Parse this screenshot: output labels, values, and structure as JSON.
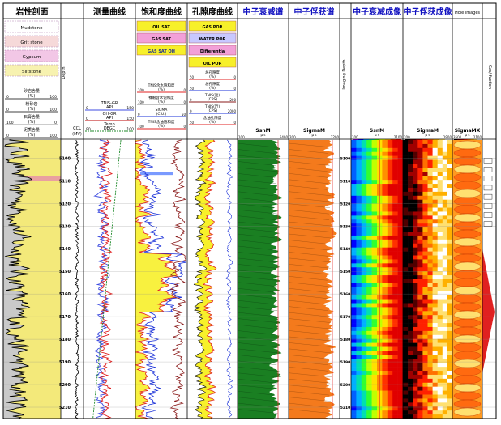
{
  "tracks": [
    {
      "key": "lith",
      "title": "岩性剖面"
    },
    {
      "key": "depth",
      "title": ""
    },
    {
      "key": "meas",
      "title": "测量曲线"
    },
    {
      "key": "sat",
      "title": "饱和度曲线"
    },
    {
      "key": "por",
      "title": "孔隙度曲线"
    },
    {
      "key": "decay",
      "title": "中子衰减谱"
    },
    {
      "key": "capture",
      "title": "中子俘获谱"
    },
    {
      "key": "imgdepth",
      "title": ""
    },
    {
      "key": "decayimg",
      "title": "中子衰减成像"
    },
    {
      "key": "captureimg",
      "title": "中子俘获成像"
    },
    {
      "key": "hole",
      "title": "Hole images"
    },
    {
      "key": "interp",
      "title": "Gas/ fuction"
    }
  ],
  "lith_legend": [
    "Mudstone",
    "Grit stone",
    "Gypsum",
    "Siltstone"
  ],
  "lith_scales": [
    {
      "name": "砂岩含量",
      "unit": "(%)",
      "min": "0",
      "max": "100"
    },
    {
      "name": "粉砂岩",
      "unit": "(%)",
      "min": "0",
      "max": "100"
    },
    {
      "name": "石膏含量",
      "unit": "(%)",
      "min": "100",
      "max": "0"
    },
    {
      "name": "泥质含量",
      "unit": "(%)",
      "min": "0",
      "max": "100"
    }
  ],
  "depth_header": "Depth",
  "meas_scales": [
    {
      "name": "TNIS-GR",
      "unit": "API",
      "min": "0",
      "max": "150"
    },
    {
      "name": "OH-GR",
      "unit": "API",
      "min": "0",
      "max": "150"
    },
    {
      "name": "Temp",
      "unit": "DEGC",
      "min": "90",
      "max": "100"
    }
  ],
  "ccl": {
    "name": "CCL",
    "unit": "(MV)",
    "min": "-10",
    "max": "10"
  },
  "sat_legend": [
    "OIL SAT",
    "GAS SAT",
    "GAS SAT OH"
  ],
  "sat_scales": [
    {
      "name": "TNIS含水饱和度",
      "unit": "(%)",
      "min": "100",
      "max": "0"
    },
    {
      "name": "裸眼含水饱和度",
      "unit": "(%)",
      "min": "100",
      "max": "0"
    },
    {
      "name": "SIGMA",
      "unit": "(C.U.)",
      "min": "0",
      "max": "50"
    },
    {
      "name": "TNIS含油饱和度",
      "unit": "(%)",
      "min": "100",
      "max": "0"
    }
  ],
  "por_legend": [
    "GAS POR",
    "WATER POR",
    "Differentia",
    "OIL POR"
  ],
  "por_scales": [
    {
      "name": "总孔隙度",
      "unit": "(%)",
      "min": "50",
      "max": "0"
    },
    {
      "name": "总孔隙度",
      "unit": "(%)",
      "min": "50",
      "max": "0"
    },
    {
      "name": "TNIS(远)",
      "unit": "(CPS)",
      "min": "0",
      "max": "200"
    },
    {
      "name": "TNIS(近)",
      "unit": "(CPS)",
      "min": "0",
      "max": "2000"
    },
    {
      "name": "含油孔隙度",
      "unit": "(%)",
      "min": "50",
      "max": "0"
    }
  ],
  "decay_scale": {
    "name": "SsnM",
    "unit": "μ s",
    "min": "100",
    "max": "5400"
  },
  "capture_scale": {
    "name": "SigmaM",
    "unit": "μ s",
    "min": "200",
    "max": "2200"
  },
  "imgdepth_header": "Imaging Depth",
  "decayimg_scale": {
    "name": "SsnM",
    "unit": "μ s",
    "min": "100",
    "max": "2100"
  },
  "captureimg_scale": {
    "name": "SigmaM",
    "unit": "μ s",
    "min": "200",
    "max": "1900"
  },
  "hole_scale": {
    "name": "SigmaMX",
    "unit": "μ s",
    "min": "3500",
    "max": "2100"
  },
  "chart_data": {
    "type": "well-log",
    "depth_range": [
      5092,
      5215
    ],
    "depth_ticks": [
      5100,
      5110,
      5120,
      5130,
      5140,
      5150,
      5160,
      5170,
      5180,
      5190,
      5200,
      5210
    ],
    "depth_tick_labels": [
      "5100",
      "5110",
      "5120",
      "5130",
      "5140",
      "5150",
      "5160",
      "5170",
      "5180",
      "5190",
      "5200",
      "5210"
    ],
    "colors": {
      "sand": "#f3e97a",
      "pink": "#e9a0a0",
      "gr": "#3c4be0",
      "red": "#e02020",
      "green": "#1f8a2a",
      "decay_green": "#1a7f22",
      "capture_orange": "#f47a1c",
      "gas_pink": "#f0a8d8",
      "yellow_fill": "#f7f02a",
      "blue_line": "#1a30d8"
    }
  }
}
